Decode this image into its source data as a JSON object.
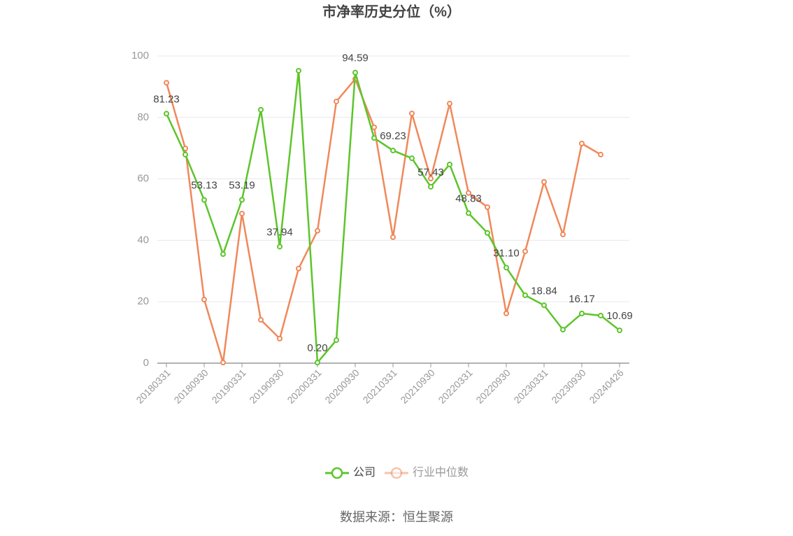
{
  "chart_data": {
    "type": "line",
    "title": "市净率历史分位（%）",
    "source": "数据来源：恒生聚源",
    "categories": [
      "20180331",
      null,
      "20180930",
      null,
      "20190331",
      null,
      "20190930",
      null,
      "20200331",
      null,
      "20200930",
      null,
      "20210331",
      null,
      "20210930",
      null,
      "20220331",
      null,
      "20220930",
      null,
      "20230331",
      null,
      "20230930",
      null,
      "20240426"
    ],
    "series": [
      {
        "name": "公司",
        "color": "#5cc52b",
        "values": [
          81.23,
          67.9,
          53.13,
          35.5,
          53.19,
          82.5,
          37.94,
          95.2,
          0.2,
          7.5,
          94.59,
          73.3,
          69.23,
          66.7,
          57.43,
          64.7,
          48.83,
          42.4,
          31.1,
          22.1,
          18.84,
          10.9,
          16.17,
          15.5,
          10.69
        ],
        "value_labels": [
          "81.23",
          null,
          "53.13",
          null,
          "53.19",
          null,
          "37.94",
          null,
          "0.20",
          null,
          "94.59",
          null,
          "69.23",
          null,
          "57.43",
          null,
          "48.83",
          null,
          "31.10",
          null,
          "18.84",
          null,
          "16.17",
          null,
          "10.69"
        ]
      },
      {
        "name": "行业中位数",
        "color": "#f0885a",
        "values": [
          91.3,
          69.9,
          20.7,
          0.2,
          48.7,
          14.1,
          8.0,
          30.8,
          43.1,
          85.2,
          92.5,
          76.8,
          41.0,
          81.3,
          60.1,
          84.5,
          55.4,
          50.8,
          16.2,
          36.4,
          59.0,
          41.9,
          71.5,
          67.9,
          null
        ]
      }
    ],
    "ylim": [
      0,
      100
    ],
    "yticks": [
      0,
      20,
      40,
      60,
      80,
      100
    ],
    "grid": true,
    "legend": "bottom"
  }
}
